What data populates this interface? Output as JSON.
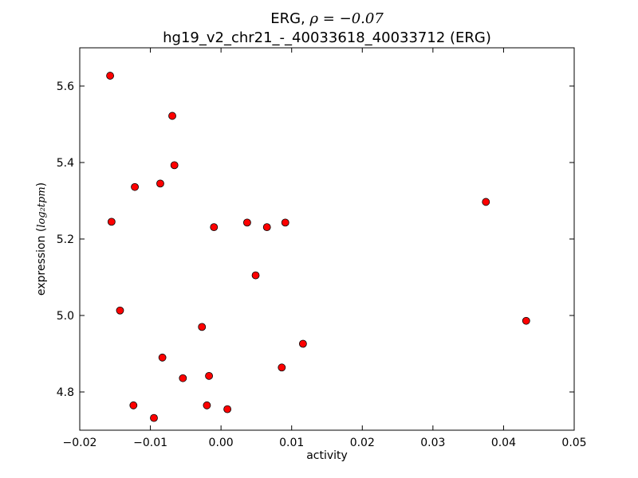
{
  "chart_data": {
    "type": "scatter",
    "title": {
      "line1_prefix": "ERG, ",
      "line1_math": "ρ = −0.07",
      "line2": "hg19_v2_chr21_-_40033618_40033712 (ERG)"
    },
    "xlabel": "activity",
    "ylabel_prefix": "expression (",
    "ylabel_math": "log₂tpm",
    "ylabel_suffix": ")",
    "xlim": [
      -0.02,
      0.05
    ],
    "ylim": [
      4.7,
      5.7
    ],
    "x_ticks": [
      -0.02,
      -0.01,
      0.0,
      0.01,
      0.02,
      0.03,
      0.04,
      0.05
    ],
    "x_tick_labels": [
      "−0.02",
      "−0.01",
      "0.00",
      "0.01",
      "0.02",
      "0.03",
      "0.04",
      "0.05"
    ],
    "y_ticks": [
      4.8,
      5.0,
      5.2,
      5.4,
      5.6
    ],
    "y_tick_labels": [
      "4.8",
      "5.0",
      "5.2",
      "5.4",
      "5.6"
    ],
    "grid": false,
    "marker_color": "#ff0000",
    "marker_edge_color": "#000000",
    "points": [
      {
        "x": -0.0157,
        "y": 5.627
      },
      {
        "x": -0.0069,
        "y": 5.522
      },
      {
        "x": -0.0066,
        "y": 5.393
      },
      {
        "x": -0.0086,
        "y": 5.345
      },
      {
        "x": -0.0122,
        "y": 5.336
      },
      {
        "x": -0.0155,
        "y": 5.245
      },
      {
        "x": -0.001,
        "y": 5.231
      },
      {
        "x": 0.0037,
        "y": 5.243
      },
      {
        "x": 0.0065,
        "y": 5.231
      },
      {
        "x": 0.0091,
        "y": 5.243
      },
      {
        "x": 0.0049,
        "y": 5.105
      },
      {
        "x": -0.0143,
        "y": 5.013
      },
      {
        "x": -0.0027,
        "y": 4.97
      },
      {
        "x": 0.0116,
        "y": 4.926
      },
      {
        "x": -0.0083,
        "y": 4.89
      },
      {
        "x": 0.0086,
        "y": 4.864
      },
      {
        "x": -0.0017,
        "y": 4.842
      },
      {
        "x": -0.0054,
        "y": 4.836
      },
      {
        "x": -0.0124,
        "y": 4.765
      },
      {
        "x": -0.002,
        "y": 4.765
      },
      {
        "x": 0.0009,
        "y": 4.755
      },
      {
        "x": -0.0095,
        "y": 4.732
      },
      {
        "x": 0.0375,
        "y": 5.297
      },
      {
        "x": 0.0432,
        "y": 4.986
      }
    ]
  }
}
